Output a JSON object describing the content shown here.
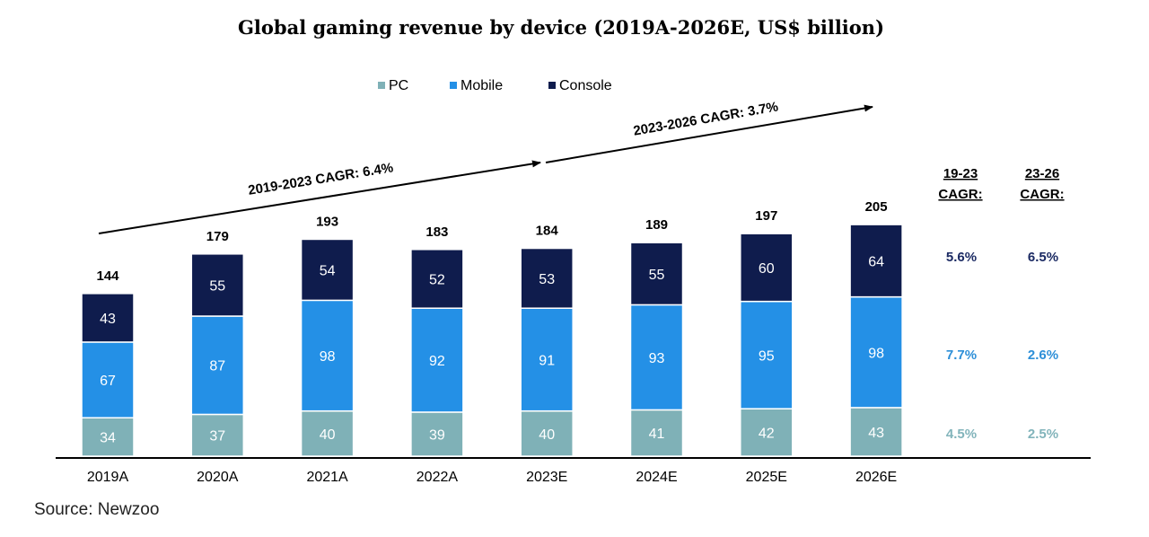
{
  "chart_data": {
    "type": "bar",
    "stacked": true,
    "title": "Global gaming revenue by device (2019A-2026E, US$ billion)",
    "categories": [
      "2019A",
      "2020A",
      "2021A",
      "2022A",
      "2023E",
      "2024E",
      "2025E",
      "2026E"
    ],
    "series": [
      {
        "name": "PC",
        "color": "#7fb1b7",
        "text_color": "#ffffff",
        "values": [
          34,
          37,
          40,
          39,
          40,
          41,
          42,
          43
        ]
      },
      {
        "name": "Mobile",
        "color": "#2490e6",
        "text_color": "#ffffff",
        "values": [
          67,
          87,
          98,
          92,
          91,
          93,
          95,
          98
        ]
      },
      {
        "name": "Console",
        "color": "#0f1c4d",
        "text_color": "#ffffff",
        "values": [
          43,
          55,
          54,
          52,
          53,
          55,
          60,
          64
        ]
      }
    ],
    "totals": [
      144,
      179,
      193,
      183,
      184,
      189,
      197,
      205
    ],
    "ylim": [
      0,
      250
    ],
    "xlabel": "",
    "ylabel": "",
    "grid": false,
    "legend_position": "top-center",
    "annotations": {
      "cagr_2019_2023": "2019-2023 CAGR: 6.4%",
      "cagr_2023_2026": "2023-2026 CAGR: 3.7%"
    },
    "cagr_table": {
      "col1_header_line1": "19-23",
      "col1_header_line2": "CAGR:",
      "col2_header_line1": "23-26",
      "col2_header_line2": "CAGR:",
      "rows": [
        {
          "series": "Console",
          "col1": "5.6%",
          "col2": "6.5%",
          "color": "#1b2a63"
        },
        {
          "series": "Mobile",
          "col1": "7.7%",
          "col2": "2.6%",
          "color": "#2d8fd8"
        },
        {
          "series": "PC",
          "col1": "4.5%",
          "col2": "2.5%",
          "color": "#82b4bb"
        }
      ]
    },
    "source": "Source: Newzoo"
  }
}
